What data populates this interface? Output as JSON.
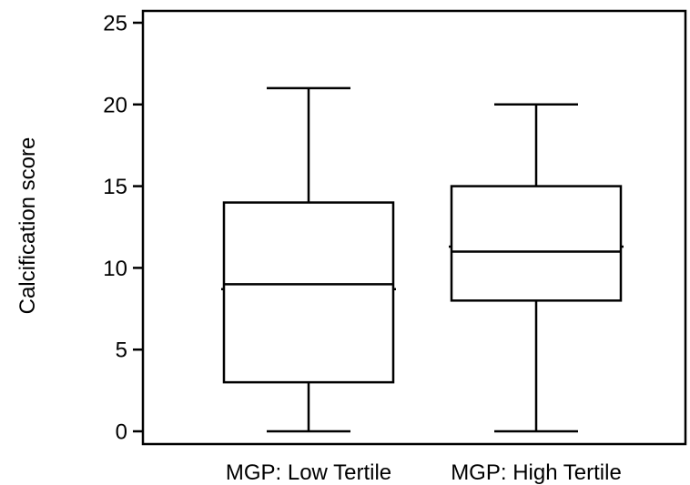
{
  "chart_data": {
    "type": "boxplot",
    "title": "",
    "xlabel": "",
    "ylabel": "Calcification score",
    "ylim": [
      0,
      25
    ],
    "yticks": [
      0,
      5,
      10,
      15,
      20,
      25
    ],
    "grid": false,
    "categories": [
      "MGP: Low Tertile",
      "MGP: High Tertile"
    ],
    "boxes": [
      {
        "category": "MGP: Low Tertile",
        "whisker_low": 0,
        "q1": 3,
        "median": 9,
        "q3": 14,
        "whisker_high": 21,
        "mean": 8.7
      },
      {
        "category": "MGP: High Tertile",
        "whisker_low": 0,
        "q1": 8,
        "median": 11,
        "q3": 15,
        "whisker_high": 20,
        "mean": 11.3
      }
    ],
    "colors": {
      "stroke": "#000000",
      "fill": "#ffffff"
    }
  }
}
